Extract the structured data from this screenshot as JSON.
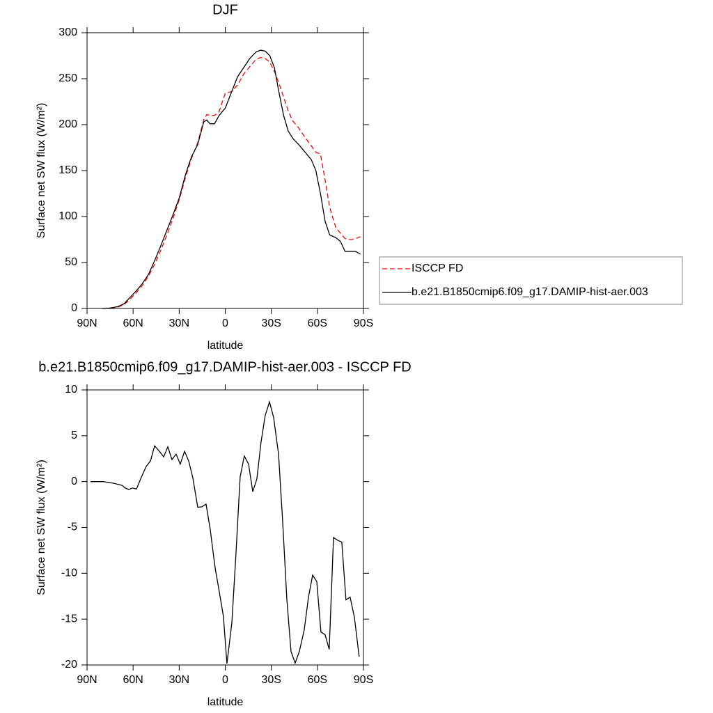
{
  "chart_data": [
    {
      "type": "line",
      "title": "DJF",
      "x_label": "latitude",
      "y_label": "Surface net SW flux (W/m²)",
      "x": [
        80,
        75,
        70,
        66,
        62,
        58,
        54,
        50,
        46,
        42,
        38,
        34,
        30,
        26,
        22,
        18,
        14,
        12,
        10,
        7,
        4,
        0,
        -4,
        -8,
        -12,
        -16,
        -20,
        -23,
        -26,
        -29,
        -32,
        -35,
        -38,
        -41,
        -44,
        -48,
        -52,
        -56,
        -59,
        -62,
        -65,
        -68,
        -72,
        -75,
        -78,
        -82,
        -85,
        -88
      ],
      "series": [
        {
          "name": "ISCCP FD",
          "color": "#ff0000",
          "dash": true,
          "values": [
            0,
            0.5,
            1.5,
            4,
            10,
            17,
            25,
            35,
            48,
            63,
            80,
            98,
            118,
            142,
            163,
            180,
            205,
            211,
            210,
            210,
            214,
            234,
            236,
            243,
            255,
            263,
            271,
            273,
            272,
            268,
            258,
            245,
            230,
            215,
            204,
            196,
            186,
            177,
            170,
            168,
            140,
            110,
            88,
            82,
            76,
            75,
            76,
            78
          ]
        },
        {
          "name": "b.e21.B1850cmip6.f09_g17.DAMIP-hist-aer.003",
          "color": "#000000",
          "dash": false,
          "values": [
            0,
            0.5,
            2,
            5,
            12,
            19,
            27,
            37,
            52,
            68,
            85,
            102,
            120,
            145,
            165,
            178,
            203,
            205,
            201,
            201,
            210,
            218,
            235,
            252,
            262,
            272,
            279,
            281,
            280,
            275,
            262,
            235,
            210,
            193,
            185,
            178,
            170,
            162,
            150,
            125,
            95,
            80,
            77,
            73,
            62,
            62,
            62,
            59
          ]
        }
      ],
      "xlim": [
        90,
        -90
      ],
      "xticks": [
        {
          "value": 90,
          "label": "90N"
        },
        {
          "value": 60,
          "label": "60N"
        },
        {
          "value": 30,
          "label": "30N"
        },
        0,
        {
          "value": -30,
          "label": "30S"
        },
        {
          "value": -60,
          "label": "60S"
        },
        {
          "value": -90,
          "label": "90S"
        }
      ],
      "ylim": [
        0,
        300
      ],
      "yticks": [
        0,
        50,
        100,
        150,
        200,
        250,
        300
      ],
      "legend": "right",
      "grid": false
    },
    {
      "type": "line",
      "title": "b.e21.B1850cmip6.f09_g17.DAMIP-hist-aer.003 - ISCCP FD",
      "x_label": "latitude",
      "y_label": "Surface net SW flux (W/m²)",
      "x": [
        87.7,
        79.6,
        72.8,
        67.3,
        65.1,
        62.8,
        60.5,
        57.8,
        54.6,
        51.5,
        48.7,
        46.0,
        42.9,
        40.1,
        37.4,
        34.7,
        32.0,
        29.3,
        26.5,
        23.8,
        21.1,
        17.9,
        15.2,
        12.5,
        9.8,
        6.6,
        3.9,
        1.2,
        -1.1,
        -4.3,
        -7.0,
        -9.7,
        -12.4,
        -15.2,
        -17.9,
        -20.6,
        -23.3,
        -26.0,
        -28.8,
        -31.5,
        -34.7,
        -37.4,
        -40.1,
        -42.8,
        -45.5,
        -48.3,
        -51.4,
        -54.2,
        -56.9,
        -59.6,
        -62.3,
        -65.0,
        -67.7,
        -70.5,
        -73.2,
        -75.9,
        -78.6,
        -81.3,
        -84.1,
        -87.2
      ],
      "series": [
        {
          "name": "difference",
          "color": "#000000",
          "dash": false,
          "values": [
            0.0,
            0.0,
            -0.18,
            -0.4,
            -0.7,
            -0.86,
            -0.7,
            -0.8,
            0.5,
            1.65,
            2.25,
            3.9,
            3.3,
            2.7,
            3.8,
            2.4,
            3.0,
            1.9,
            3.3,
            2.25,
            0.4,
            -2.8,
            -2.75,
            -2.45,
            -5.2,
            -9.4,
            -12.0,
            -14.7,
            -19.85,
            -15.4,
            -7.8,
            0.5,
            2.8,
            1.9,
            -1.1,
            0.3,
            4.3,
            7.2,
            8.7,
            7.0,
            3.0,
            -4.4,
            -12.8,
            -18.5,
            -19.8,
            -18.5,
            -16.2,
            -12.6,
            -10.2,
            -10.9,
            -16.4,
            -16.7,
            -18.3,
            -6.1,
            -6.4,
            -6.6,
            -12.9,
            -12.6,
            -14.8,
            -19.1
          ]
        }
      ],
      "xlim": [
        90,
        -90
      ],
      "xticks": [
        {
          "value": 90,
          "label": "90N"
        },
        {
          "value": 60,
          "label": "60N"
        },
        {
          "value": 30,
          "label": "30N"
        },
        0,
        {
          "value": -30,
          "label": "30S"
        },
        {
          "value": -60,
          "label": "60S"
        },
        {
          "value": -90,
          "label": "90S"
        }
      ],
      "ylim": [
        -20,
        10
      ],
      "yticks": [
        -20,
        -15,
        -10,
        -5,
        0,
        5,
        10
      ],
      "grid": false
    }
  ]
}
